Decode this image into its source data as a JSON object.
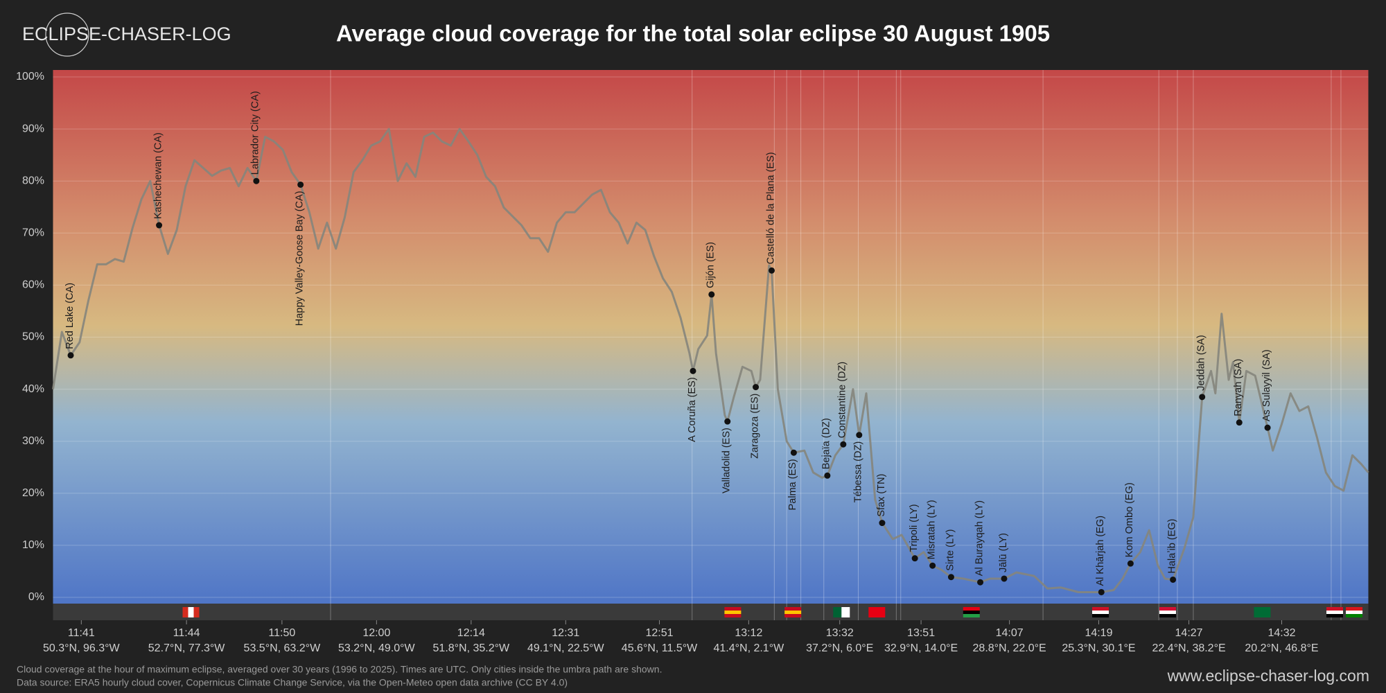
{
  "chart_data": {
    "type": "line",
    "logo": "ECLIPSE-CHASER-LOG",
    "title": "Average cloud coverage for the total solar eclipse 30 August 1905",
    "notes": [
      "Cloud coverage at the hour of maximum eclipse, averaged over 30 years (1996 to 2025). Times are UTC. Only cities inside the umbra path are shown.",
      "Data source: ERA5 hourly cloud cover, Copernicus Climate Change Service, via the Open-Meteo open data archive (CC BY 4.0)"
    ],
    "footer_url": "www.eclipse-chaser-log.com",
    "color": "#85857c",
    "grid": true,
    "ylim": [
      0,
      100
    ],
    "yticks": [
      {
        "value": 0,
        "label": "0%"
      },
      {
        "value": 10,
        "label": "10%"
      },
      {
        "value": 20,
        "label": "20%"
      },
      {
        "value": 30,
        "label": "30%"
      },
      {
        "value": 40,
        "label": "40%"
      },
      {
        "value": 50,
        "label": "50%"
      },
      {
        "value": 60,
        "label": "60%"
      },
      {
        "value": 70,
        "label": "70%"
      },
      {
        "value": 80,
        "label": "80%"
      },
      {
        "value": 90,
        "label": "90%"
      },
      {
        "value": 100,
        "label": "100%"
      }
    ],
    "xlim": [
      0,
      1488
    ],
    "xticks": [
      {
        "value": 32,
        "label": "11:41"
      },
      {
        "value": 151,
        "label": "11:44"
      },
      {
        "value": 259,
        "label": "11:50"
      },
      {
        "value": 366,
        "label": "12:00"
      },
      {
        "value": 473,
        "label": "12:14"
      },
      {
        "value": 580,
        "label": "12:31"
      },
      {
        "value": 686,
        "label": "12:51"
      },
      {
        "value": 787,
        "label": "13:12"
      },
      {
        "value": 890,
        "label": "13:32"
      },
      {
        "value": 982,
        "label": "13:51"
      },
      {
        "value": 1082,
        "label": "14:07"
      },
      {
        "value": 1183,
        "label": "14:19"
      },
      {
        "value": 1285,
        "label": "14:27"
      },
      {
        "value": 1390,
        "label": "14:32"
      }
    ],
    "xtick_coords": [
      "50.3°N, 96.3°W",
      "52.7°N, 77.3°W",
      "53.5°N, 63.2°W",
      "53.2°N, 49.0°W",
      "51.8°N, 35.2°W",
      "49.1°N, 22.5°W",
      "45.6°N, 11.5°W",
      "41.4°N, 2.1°W",
      "37.2°N, 6.0°E",
      "32.9°N, 14.0°E",
      "28.8°N, 22.0°E",
      "25.3°N, 30.1°E",
      "22.4°N, 38.2°E",
      "20.2°N, 46.8°E"
    ],
    "x": [
      0,
      10,
      20,
      30,
      40,
      50,
      60,
      70,
      80,
      90,
      100,
      110,
      120,
      130,
      140,
      150,
      160,
      170,
      180,
      190,
      200,
      210,
      220,
      230,
      240,
      250,
      260,
      270,
      280,
      290,
      300,
      310,
      320,
      330,
      340,
      350,
      360,
      370,
      380,
      390,
      400,
      410,
      420,
      430,
      440,
      450,
      460,
      470,
      480,
      490,
      500,
      510,
      520,
      530,
      540,
      550,
      560,
      570,
      580,
      590,
      600,
      610,
      620,
      630,
      640,
      650,
      660,
      670,
      680,
      690,
      700,
      710,
      720,
      724,
      730,
      740,
      745,
      750,
      760,
      763,
      770,
      780,
      790,
      795,
      800,
      810,
      813,
      820,
      830,
      838,
      850,
      860,
      870,
      876,
      885,
      894,
      905,
      912,
      920,
      930,
      938,
      950,
      960,
      975,
      985,
      995,
      1005,
      1016,
      1030,
      1049,
      1060,
      1076,
      1090,
      1110,
      1125,
      1140,
      1160,
      1186,
      1200,
      1210,
      1219,
      1230,
      1240,
      1250,
      1258,
      1267,
      1280,
      1290,
      1300,
      1310,
      1315,
      1322,
      1330,
      1335,
      1342,
      1350,
      1360,
      1374,
      1380,
      1390,
      1400,
      1410,
      1420,
      1430,
      1440,
      1450,
      1460,
      1470,
      1480,
      1488
    ],
    "values": [
      40,
      51,
      46.5,
      49,
      57,
      64,
      64,
      65,
      64.5,
      71,
      76.5,
      80,
      71.5,
      66,
      70.6,
      79,
      84,
      82.5,
      81,
      82,
      82.5,
      79,
      82.5,
      80,
      88.5,
      87.6,
      86,
      81.7,
      79.3,
      74,
      67,
      72,
      67,
      73,
      81.7,
      84,
      86.8,
      87.6,
      90,
      80,
      83.4,
      80.8,
      88.5,
      89.3,
      87.6,
      86.8,
      90,
      87.6,
      85,
      80.8,
      79,
      74.9,
      73.2,
      71.5,
      69,
      69,
      66.4,
      72,
      74,
      74,
      75.7,
      77.4,
      78.3,
      74,
      72,
      68,
      72,
      70.6,
      65.5,
      61.3,
      58.7,
      53.7,
      46.9,
      43.5,
      47.7,
      50.3,
      58.2,
      46.9,
      35,
      33.8,
      38.4,
      44.3,
      43.5,
      40.4,
      41.8,
      63.8,
      62.8,
      40,
      30,
      27.8,
      28.2,
      24,
      23,
      23.4,
      27.3,
      29.4,
      40,
      31.2,
      39.2,
      18.8,
      14.3,
      11.2,
      12,
      7.5,
      8.7,
      6.1,
      5.3,
      3.9,
      3.6,
      2.9,
      3.6,
      3.6,
      4.8,
      4.1,
      1.7,
      1.9,
      1,
      1,
      1.4,
      3.6,
      6.5,
      8.7,
      12.9,
      6.1,
      3.6,
      3.4,
      9.5,
      15.4,
      38.5,
      43.5,
      39.2,
      54.5,
      41.8,
      45.2,
      33.6,
      43.5,
      42.6,
      32.6,
      28.2,
      33.3,
      39.2,
      35.8,
      36.7,
      30.7,
      24,
      21.4,
      20.5,
      27.3,
      25.6,
      24
    ],
    "borders": [
      314,
      723,
      816,
      830,
      846,
      872,
      911,
      954,
      959,
      1120,
      1251,
      1272,
      1290,
      1446,
      1457
    ],
    "cities": [
      {
        "name": "Red Lake (CA)",
        "x": 20,
        "value": 46.5,
        "label_side": "above"
      },
      {
        "name": "Kashechewan (CA)",
        "x": 120,
        "value": 71.5,
        "label_side": "above"
      },
      {
        "name": "Labrador City (CA)",
        "x": 230,
        "value": 80,
        "label_side": "above"
      },
      {
        "name": "Happy Valley-Goose Bay (CA)",
        "x": 280,
        "value": 79.3,
        "label_side": "below"
      },
      {
        "name": "A Coruña (ES)",
        "x": 724,
        "value": 43.5,
        "label_side": "below"
      },
      {
        "name": "Gijón (ES)",
        "x": 745,
        "value": 58.2,
        "label_side": "above"
      },
      {
        "name": "Valladolid (ES)",
        "x": 763,
        "value": 33.8,
        "label_side": "below"
      },
      {
        "name": "Zaragoza (ES)",
        "x": 795,
        "value": 40.4,
        "label_side": "below"
      },
      {
        "name": "Castelló de la Plana (ES)",
        "x": 813,
        "value": 62.8,
        "label_side": "above"
      },
      {
        "name": "Palma (ES)",
        "x": 838,
        "value": 27.8,
        "label_side": "below"
      },
      {
        "name": "Bejaïa (DZ)",
        "x": 876,
        "value": 23.4,
        "label_side": "above"
      },
      {
        "name": "Constantine (DZ)",
        "x": 894,
        "value": 29.4,
        "label_side": "above"
      },
      {
        "name": "Tébessa (DZ)",
        "x": 912,
        "value": 31.2,
        "label_side": "below"
      },
      {
        "name": "Sfax (TN)",
        "x": 938,
        "value": 14.3,
        "label_side": "above"
      },
      {
        "name": "Tripoli (LY)",
        "x": 975,
        "value": 7.5,
        "label_side": "above"
      },
      {
        "name": "Misratah (LY)",
        "x": 995,
        "value": 6.1,
        "label_side": "above"
      },
      {
        "name": "Sirte (LY)",
        "x": 1016,
        "value": 3.9,
        "label_side": "above"
      },
      {
        "name": "Al Burayqah (LY)",
        "x": 1049,
        "value": 2.9,
        "label_side": "above"
      },
      {
        "name": "Jālū (LY)",
        "x": 1076,
        "value": 3.6,
        "label_side": "above"
      },
      {
        "name": "Al Khārjah (EG)",
        "x": 1186,
        "value": 1,
        "label_side": "above"
      },
      {
        "name": "Kom Ombo (EG)",
        "x": 1219,
        "value": 6.5,
        "label_side": "above"
      },
      {
        "name": "Halaʼib (EG)",
        "x": 1267,
        "value": 3.4,
        "label_side": "above"
      },
      {
        "name": "Jeddah (SA)",
        "x": 1300,
        "value": 38.5,
        "label_side": "above"
      },
      {
        "name": "Ranyah (SA)",
        "x": 1342,
        "value": 33.6,
        "label_side": "above"
      },
      {
        "name": "As Sulayyil (SA)",
        "x": 1374,
        "value": 32.6,
        "label_side": "above"
      }
    ]
  }
}
